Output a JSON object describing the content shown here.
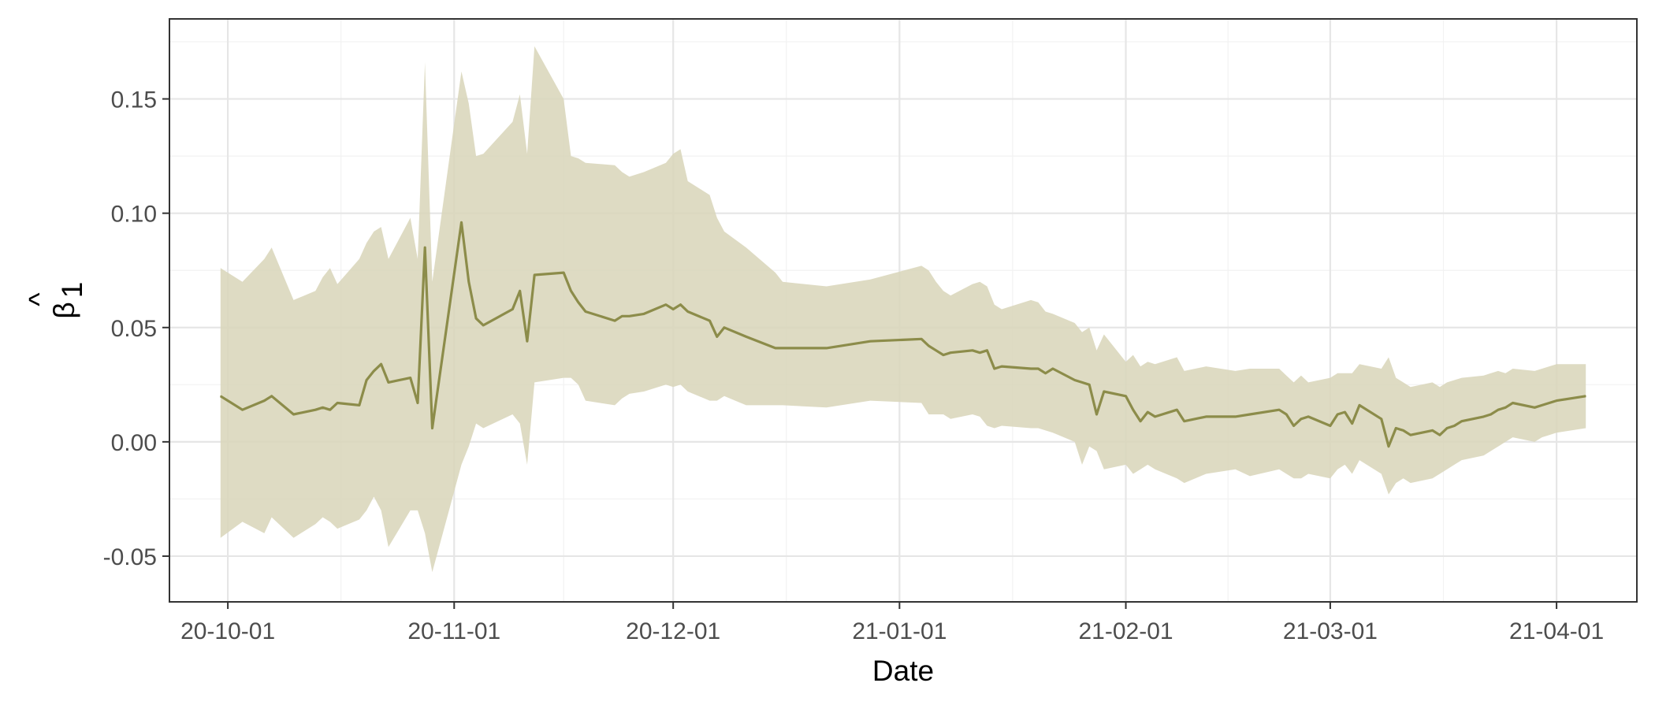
{
  "chart_data": {
    "type": "area",
    "xlabel": "Date",
    "ylabel": "β̂1",
    "ylabel_base": "β",
    "ylabel_hat": "^",
    "ylabel_sub": "1",
    "xlim": [
      "2020-09-23",
      "2021-04-12"
    ],
    "ylim": [
      -0.07,
      0.185
    ],
    "grid": true,
    "x_ticks": [
      {
        "date": "2020-10-01",
        "label": "20-10-01"
      },
      {
        "date": "2020-11-01",
        "label": "20-11-01"
      },
      {
        "date": "2020-12-01",
        "label": "20-12-01"
      },
      {
        "date": "2021-01-01",
        "label": "21-01-01"
      },
      {
        "date": "2021-02-01",
        "label": "21-02-01"
      },
      {
        "date": "2021-03-01",
        "label": "21-03-01"
      },
      {
        "date": "2021-04-01",
        "label": "21-04-01"
      }
    ],
    "y_ticks": [
      {
        "value": -0.05,
        "label": "-0.05"
      },
      {
        "value": 0.0,
        "label": "0.00"
      },
      {
        "value": 0.05,
        "label": "0.05"
      },
      {
        "value": 0.1,
        "label": "0.10"
      },
      {
        "value": 0.15,
        "label": "0.15"
      }
    ],
    "series": [
      {
        "line_color": "#8c8c4a",
        "band_color": "#d8d5b8",
        "x": [
          "2020-09-30",
          "2020-10-03",
          "2020-10-06",
          "2020-10-07",
          "2020-10-10",
          "2020-10-13",
          "2020-10-14",
          "2020-10-15",
          "2020-10-16",
          "2020-10-19",
          "2020-10-20",
          "2020-10-21",
          "2020-10-22",
          "2020-10-23",
          "2020-10-26",
          "2020-10-27",
          "2020-10-28",
          "2020-10-29",
          "2020-11-02",
          "2020-11-03",
          "2020-11-04",
          "2020-11-05",
          "2020-11-09",
          "2020-11-10",
          "2020-11-11",
          "2020-11-12",
          "2020-11-16",
          "2020-11-17",
          "2020-11-18",
          "2020-11-19",
          "2020-11-23",
          "2020-11-24",
          "2020-11-25",
          "2020-11-27",
          "2020-11-30",
          "2020-12-01",
          "2020-12-02",
          "2020-12-03",
          "2020-12-06",
          "2020-12-07",
          "2020-12-08",
          "2020-12-11",
          "2020-12-15",
          "2020-12-16",
          "2020-12-22",
          "2020-12-28",
          "2021-01-04",
          "2021-01-05",
          "2021-01-06",
          "2021-01-07",
          "2021-01-08",
          "2021-01-11",
          "2021-01-12",
          "2021-01-13",
          "2021-01-14",
          "2021-01-15",
          "2021-01-19",
          "2021-01-20",
          "2021-01-21",
          "2021-01-22",
          "2021-01-25",
          "2021-01-26",
          "2021-01-27",
          "2021-01-28",
          "2021-01-29",
          "2021-02-01",
          "2021-02-02",
          "2021-02-03",
          "2021-02-04",
          "2021-02-05",
          "2021-02-08",
          "2021-02-09",
          "2021-02-12",
          "2021-02-16",
          "2021-02-18",
          "2021-02-22",
          "2021-02-23",
          "2021-02-24",
          "2021-02-25",
          "2021-02-26",
          "2021-03-01",
          "2021-03-02",
          "2021-03-03",
          "2021-03-04",
          "2021-03-05",
          "2021-03-08",
          "2021-03-09",
          "2021-03-10",
          "2021-03-11",
          "2021-03-12",
          "2021-03-15",
          "2021-03-16",
          "2021-03-17",
          "2021-03-18",
          "2021-03-19",
          "2021-03-22",
          "2021-03-23",
          "2021-03-24",
          "2021-03-25",
          "2021-03-26",
          "2021-03-29",
          "2021-03-30",
          "2021-03-31",
          "2021-04-01",
          "2021-04-05"
        ],
        "values": [
          0.02,
          0.014,
          0.018,
          0.02,
          0.012,
          0.014,
          0.015,
          0.014,
          0.017,
          0.016,
          0.027,
          0.031,
          0.034,
          0.026,
          0.028,
          0.017,
          0.085,
          0.006,
          0.096,
          0.07,
          0.054,
          0.051,
          0.058,
          0.066,
          0.044,
          0.073,
          0.074,
          0.066,
          0.061,
          0.057,
          0.053,
          0.055,
          0.055,
          0.056,
          0.06,
          0.058,
          0.06,
          0.057,
          0.053,
          0.046,
          0.05,
          0.046,
          0.041,
          0.041,
          0.041,
          0.044,
          0.045,
          0.042,
          0.04,
          0.038,
          0.039,
          0.04,
          0.039,
          0.04,
          0.032,
          0.033,
          0.032,
          0.032,
          0.03,
          0.032,
          0.027,
          0.026,
          0.025,
          0.012,
          0.022,
          0.02,
          0.014,
          0.009,
          0.013,
          0.011,
          0.014,
          0.009,
          0.011,
          0.011,
          0.012,
          0.014,
          0.012,
          0.007,
          0.01,
          0.011,
          0.007,
          0.012,
          0.013,
          0.008,
          0.016,
          0.01,
          -0.002,
          0.006,
          0.005,
          0.003,
          0.005,
          0.003,
          0.006,
          0.007,
          0.009,
          0.011,
          0.012,
          0.014,
          0.015,
          0.017,
          0.015,
          0.016,
          0.017,
          0.018,
          0.02
        ],
        "lower": [
          -0.042,
          -0.035,
          -0.04,
          -0.033,
          -0.042,
          -0.036,
          -0.033,
          -0.035,
          -0.038,
          -0.034,
          -0.03,
          -0.024,
          -0.03,
          -0.046,
          -0.03,
          -0.03,
          -0.04,
          -0.057,
          -0.01,
          -0.002,
          0.008,
          0.006,
          0.012,
          0.008,
          -0.01,
          0.026,
          0.028,
          0.028,
          0.025,
          0.018,
          0.016,
          0.019,
          0.021,
          0.022,
          0.025,
          0.024,
          0.025,
          0.022,
          0.018,
          0.018,
          0.02,
          0.016,
          0.016,
          0.016,
          0.015,
          0.018,
          0.017,
          0.012,
          0.012,
          0.012,
          0.01,
          0.012,
          0.011,
          0.007,
          0.006,
          0.007,
          0.006,
          0.006,
          0.005,
          0.004,
          0.0,
          -0.01,
          -0.002,
          -0.004,
          -0.012,
          -0.01,
          -0.014,
          -0.012,
          -0.01,
          -0.012,
          -0.016,
          -0.018,
          -0.014,
          -0.012,
          -0.015,
          -0.012,
          -0.014,
          -0.016,
          -0.016,
          -0.014,
          -0.016,
          -0.012,
          -0.01,
          -0.014,
          -0.008,
          -0.014,
          -0.023,
          -0.018,
          -0.016,
          -0.018,
          -0.016,
          -0.014,
          -0.012,
          -0.01,
          -0.008,
          -0.006,
          -0.004,
          -0.002,
          0.0,
          0.002,
          0.0,
          0.002,
          0.003,
          0.004,
          0.006
        ],
        "upper": [
          0.076,
          0.07,
          0.08,
          0.085,
          0.062,
          0.066,
          0.072,
          0.076,
          0.069,
          0.08,
          0.087,
          0.092,
          0.094,
          0.08,
          0.098,
          0.08,
          0.166,
          0.07,
          0.162,
          0.148,
          0.125,
          0.126,
          0.14,
          0.152,
          0.126,
          0.173,
          0.15,
          0.125,
          0.124,
          0.122,
          0.121,
          0.118,
          0.116,
          0.118,
          0.122,
          0.126,
          0.128,
          0.114,
          0.108,
          0.098,
          0.092,
          0.085,
          0.074,
          0.07,
          0.068,
          0.071,
          0.077,
          0.075,
          0.07,
          0.066,
          0.064,
          0.069,
          0.07,
          0.068,
          0.06,
          0.058,
          0.062,
          0.061,
          0.057,
          0.056,
          0.052,
          0.048,
          0.05,
          0.04,
          0.047,
          0.035,
          0.038,
          0.033,
          0.035,
          0.034,
          0.037,
          0.031,
          0.033,
          0.031,
          0.032,
          0.032,
          0.029,
          0.026,
          0.029,
          0.026,
          0.028,
          0.03,
          0.03,
          0.03,
          0.034,
          0.032,
          0.037,
          0.028,
          0.026,
          0.024,
          0.026,
          0.024,
          0.026,
          0.027,
          0.028,
          0.029,
          0.03,
          0.031,
          0.03,
          0.032,
          0.031,
          0.032,
          0.033,
          0.034,
          0.034
        ]
      }
    ]
  }
}
